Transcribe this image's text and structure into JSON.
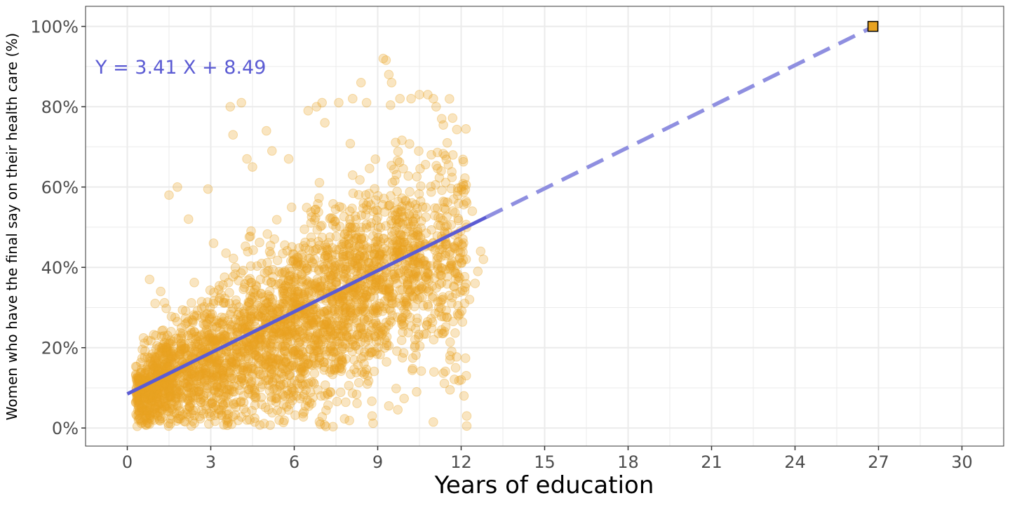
{
  "chart_data": {
    "type": "scatter",
    "xlabel": "Years of education",
    "ylabel": "Women who have the final say on their health care (%)",
    "xlim": [
      -1.5,
      31.5
    ],
    "ylim": [
      -4.5,
      105
    ],
    "x_ticks": [
      0,
      3,
      6,
      9,
      12,
      15,
      18,
      21,
      24,
      27,
      30
    ],
    "x_tick_labels": [
      "0",
      "3",
      "6",
      "9",
      "12",
      "15",
      "18",
      "21",
      "24",
      "27",
      "30"
    ],
    "y_ticks": [
      0,
      20,
      40,
      60,
      80,
      100
    ],
    "y_tick_labels": [
      "0%",
      "20%",
      "40%",
      "60%",
      "80%",
      "100%"
    ],
    "grid": true,
    "legend": "none",
    "colors": {
      "points": "#E8A321",
      "line": "#5B5BD3",
      "line_extension": "#8F8FE0",
      "highlight_fill": "#E8A321",
      "highlight_stroke": "#000000",
      "panel_border": "#333333",
      "grid": "#EBEBEB"
    },
    "regression": {
      "slope": 3.41,
      "intercept": 8.49,
      "solid_x_range": [
        0,
        12.9
      ],
      "dashed_x_range": [
        12.9,
        26.8
      ],
      "label": "Y = 3.41 X + 8.49"
    },
    "highlight_point": {
      "x": 26.8,
      "y": 100
    },
    "scatter_note": "approximately 3000 semi-transparent points; cloud described by summary bands",
    "scatter_bands": [
      {
        "x": [
          0.3,
          1.5
        ],
        "y_center": [
          8,
          13
        ],
        "y_spread": [
          5,
          9
        ],
        "count": 420
      },
      {
        "x": [
          1.5,
          3.0
        ],
        "y_center": [
          12,
          17
        ],
        "y_spread": [
          8,
          12
        ],
        "count": 380
      },
      {
        "x": [
          3.0,
          4.5
        ],
        "y_center": [
          16,
          22
        ],
        "y_spread": [
          11,
          14
        ],
        "count": 380
      },
      {
        "x": [
          4.5,
          6.0
        ],
        "y_center": [
          21,
          26
        ],
        "y_spread": [
          13,
          15
        ],
        "count": 420
      },
      {
        "x": [
          6.0,
          7.5
        ],
        "y_center": [
          26,
          31
        ],
        "y_spread": [
          14,
          16
        ],
        "count": 450
      },
      {
        "x": [
          7.5,
          9.0
        ],
        "y_center": [
          31,
          38
        ],
        "y_spread": [
          15,
          17
        ],
        "count": 430
      },
      {
        "x": [
          9.0,
          10.5
        ],
        "y_center": [
          38,
          42
        ],
        "y_spread": [
          16,
          18
        ],
        "count": 340
      },
      {
        "x": [
          10.5,
          12.2
        ],
        "y_center": [
          40,
          44
        ],
        "y_spread": [
          17,
          18
        ],
        "count": 260
      }
    ],
    "scatter_outliers": [
      [
        0.8,
        37
      ],
      [
        1.0,
        31
      ],
      [
        1.2,
        34
      ],
      [
        1.5,
        58
      ],
      [
        1.8,
        60
      ],
      [
        2.2,
        52
      ],
      [
        2.9,
        59.5
      ],
      [
        3.1,
        46
      ],
      [
        3.7,
        80
      ],
      [
        4.1,
        81
      ],
      [
        3.8,
        73
      ],
      [
        4.3,
        67
      ],
      [
        4.5,
        65
      ],
      [
        5.0,
        74
      ],
      [
        5.2,
        69
      ],
      [
        5.8,
        67
      ],
      [
        6.5,
        79
      ],
      [
        6.8,
        80
      ],
      [
        7.0,
        81
      ],
      [
        7.1,
        76
      ],
      [
        7.6,
        81
      ],
      [
        8.1,
        82
      ],
      [
        8.4,
        86
      ],
      [
        8.6,
        81
      ],
      [
        9.2,
        92
      ],
      [
        9.3,
        92.5
      ],
      [
        9.4,
        88
      ],
      [
        9.5,
        86
      ],
      [
        9.8,
        82
      ],
      [
        10.2,
        82
      ],
      [
        10.5,
        83
      ],
      [
        10.8,
        83
      ],
      [
        11.0,
        82
      ],
      [
        11.1,
        80
      ],
      [
        11.3,
        77
      ],
      [
        11.5,
        71
      ],
      [
        12.0,
        60
      ],
      [
        12.2,
        56
      ],
      [
        12.4,
        54
      ],
      [
        12.7,
        44
      ],
      [
        12.8,
        42
      ],
      [
        12.6,
        39
      ],
      [
        12.5,
        36
      ],
      [
        12.3,
        32
      ],
      [
        11.9,
        28
      ],
      [
        12.0,
        12
      ],
      [
        12.1,
        8
      ],
      [
        12.2,
        3
      ],
      [
        12.2,
        0.5
      ],
      [
        11.0,
        1.5
      ],
      [
        8.8,
        3
      ],
      [
        4.3,
        2
      ],
      [
        2.3,
        0.5
      ],
      [
        0.8,
        1
      ],
      [
        0.4,
        2
      ],
      [
        1.9,
        3
      ],
      [
        3.6,
        2.3
      ],
      [
        5.8,
        4.5
      ],
      [
        6.4,
        5.5
      ],
      [
        7.1,
        8
      ],
      [
        9.4,
        5.5
      ],
      [
        10.4,
        9
      ],
      [
        11.6,
        9.5
      ],
      [
        11.8,
        15
      ],
      [
        11.6,
        18
      ],
      [
        11.4,
        24
      ],
      [
        11.2,
        30
      ],
      [
        11.8,
        37
      ]
    ]
  }
}
